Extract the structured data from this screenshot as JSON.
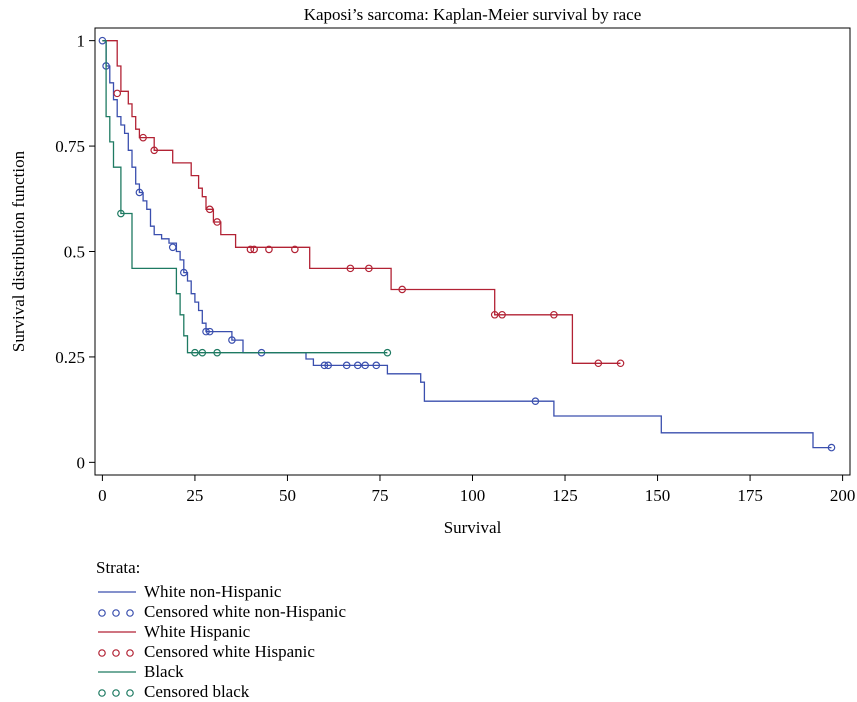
{
  "chart_data": {
    "type": "line",
    "title": "Kaposi’s sarcoma: Kaplan-Meier survival by race",
    "xlabel": "Survival",
    "ylabel": "Survival distribution function",
    "xlim": [
      -2,
      202
    ],
    "ylim": [
      -0.03,
      1.03
    ],
    "x_ticks": [
      0,
      25,
      50,
      75,
      100,
      125,
      150,
      175,
      200
    ],
    "y_ticks": [
      {
        "value": 0,
        "label": "0"
      },
      {
        "value": 0.25,
        "label": "0.25"
      },
      {
        "value": 0.5,
        "label": "0.5"
      },
      {
        "value": 0.75,
        "label": "0.75"
      },
      {
        "value": 1,
        "label": "1"
      }
    ],
    "grid": false,
    "legend_title": "Strata:",
    "legend_position": "bottom-left",
    "series": [
      {
        "name": "White non-Hispanic",
        "color": "#3a4fae",
        "step_points": [
          [
            0,
            1.0
          ],
          [
            1,
            0.94
          ],
          [
            2,
            0.9
          ],
          [
            3,
            0.86
          ],
          [
            4,
            0.82
          ],
          [
            5,
            0.8
          ],
          [
            6,
            0.78
          ],
          [
            7,
            0.74
          ],
          [
            8,
            0.7
          ],
          [
            9,
            0.66
          ],
          [
            10,
            0.64
          ],
          [
            11,
            0.62
          ],
          [
            12,
            0.6
          ],
          [
            13,
            0.56
          ],
          [
            14,
            0.54
          ],
          [
            16,
            0.53
          ],
          [
            18,
            0.52
          ],
          [
            20,
            0.5
          ],
          [
            21,
            0.48
          ],
          [
            22,
            0.45
          ],
          [
            23,
            0.43
          ],
          [
            24,
            0.4
          ],
          [
            25,
            0.38
          ],
          [
            26,
            0.36
          ],
          [
            27,
            0.33
          ],
          [
            28,
            0.31
          ],
          [
            35,
            0.29
          ],
          [
            38,
            0.26
          ],
          [
            52,
            0.26
          ],
          [
            55,
            0.245
          ],
          [
            57,
            0.23
          ],
          [
            77,
            0.21
          ],
          [
            86,
            0.19
          ],
          [
            87,
            0.145
          ],
          [
            122,
            0.11
          ],
          [
            151,
            0.07
          ],
          [
            192,
            0.035
          ],
          [
            197,
            0.035
          ]
        ],
        "censored": [
          [
            0,
            1.0
          ],
          [
            1,
            0.94
          ],
          [
            10,
            0.64
          ],
          [
            19,
            0.51
          ],
          [
            22,
            0.45
          ],
          [
            28,
            0.31
          ],
          [
            29,
            0.31
          ],
          [
            35,
            0.29
          ],
          [
            43,
            0.26
          ],
          [
            60,
            0.23
          ],
          [
            61,
            0.23
          ],
          [
            66,
            0.23
          ],
          [
            69,
            0.23
          ],
          [
            71,
            0.23
          ],
          [
            74,
            0.23
          ],
          [
            117,
            0.145
          ],
          [
            197,
            0.035
          ]
        ]
      },
      {
        "name": "White Hispanic",
        "color": "#b22234",
        "step_points": [
          [
            0,
            1.0
          ],
          [
            4,
            0.94
          ],
          [
            5,
            0.88
          ],
          [
            7,
            0.85
          ],
          [
            8,
            0.82
          ],
          [
            9,
            0.79
          ],
          [
            10,
            0.77
          ],
          [
            14,
            0.74
          ],
          [
            19,
            0.71
          ],
          [
            24,
            0.68
          ],
          [
            26,
            0.65
          ],
          [
            27,
            0.63
          ],
          [
            28,
            0.6
          ],
          [
            30,
            0.57
          ],
          [
            32,
            0.54
          ],
          [
            36,
            0.51
          ],
          [
            56,
            0.46
          ],
          [
            78,
            0.41
          ],
          [
            106,
            0.35
          ],
          [
            127,
            0.235
          ],
          [
            140,
            0.235
          ]
        ],
        "censored": [
          [
            4,
            0.875
          ],
          [
            11,
            0.77
          ],
          [
            14,
            0.74
          ],
          [
            29,
            0.6
          ],
          [
            31,
            0.57
          ],
          [
            40,
            0.505
          ],
          [
            41,
            0.505
          ],
          [
            45,
            0.505
          ],
          [
            52,
            0.505
          ],
          [
            67,
            0.46
          ],
          [
            72,
            0.46
          ],
          [
            81,
            0.41
          ],
          [
            106,
            0.35
          ],
          [
            108,
            0.35
          ],
          [
            122,
            0.35
          ],
          [
            134,
            0.235
          ],
          [
            140,
            0.235
          ]
        ]
      },
      {
        "name": "Black",
        "color": "#1e7a62",
        "step_points": [
          [
            0,
            1.0
          ],
          [
            1,
            0.82
          ],
          [
            2,
            0.76
          ],
          [
            3,
            0.7
          ],
          [
            5,
            0.59
          ],
          [
            8,
            0.46
          ],
          [
            20,
            0.4
          ],
          [
            21,
            0.35
          ],
          [
            22,
            0.3
          ],
          [
            23,
            0.26
          ],
          [
            77,
            0.26
          ]
        ],
        "censored": [
          [
            5,
            0.59
          ],
          [
            25,
            0.26
          ],
          [
            27,
            0.26
          ],
          [
            31,
            0.26
          ],
          [
            77,
            0.26
          ]
        ]
      }
    ],
    "legend_entries": [
      {
        "label": "White non-Hispanic",
        "kind": "line",
        "color": "#3a4fae"
      },
      {
        "label": "Censored white non-Hispanic",
        "kind": "circles",
        "color": "#3a4fae"
      },
      {
        "label": "White Hispanic",
        "kind": "line",
        "color": "#b22234"
      },
      {
        "label": "Censored white Hispanic",
        "kind": "circles",
        "color": "#b22234"
      },
      {
        "label": "Black",
        "kind": "line",
        "color": "#1e7a62"
      },
      {
        "label": "Censored black",
        "kind": "circles",
        "color": "#1e7a62"
      }
    ]
  }
}
